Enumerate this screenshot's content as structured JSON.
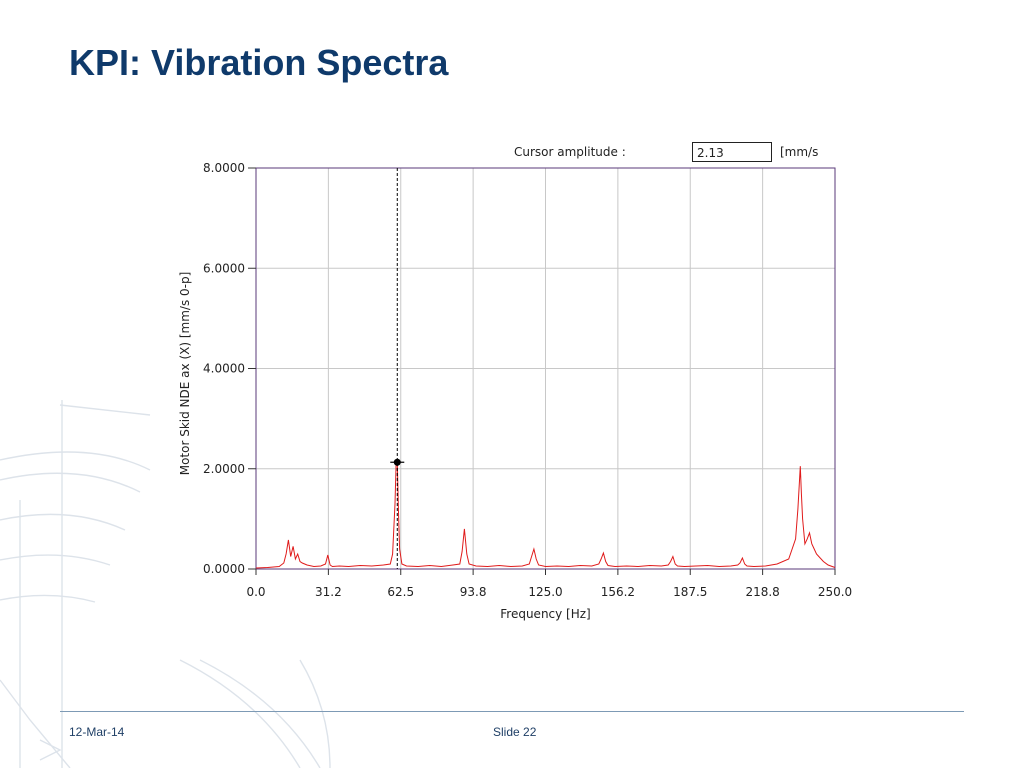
{
  "slide": {
    "title": "KPI: Vibration Spectra",
    "footer_date": "12-Mar-14",
    "footer_slide": "Slide 22"
  },
  "cursor": {
    "label": "Cursor amplitude :",
    "value": "2.13",
    "unit": "[mm/s",
    "frequency": 61.0,
    "amplitude": 2.13
  },
  "colors": {
    "title": "#0f3a6b",
    "trace": "#e01b1b",
    "grid": "#c8c8c8",
    "frame": "#5a3a7a"
  },
  "chart_data": {
    "type": "line",
    "xlabel": "Frequency [Hz]",
    "ylabel": "Motor Skid NDE ax (X) [mm/s 0-p]",
    "xlim": [
      0,
      250
    ],
    "ylim": [
      0,
      8
    ],
    "x_ticks": [
      "0.0",
      "31.2",
      "62.5",
      "93.8",
      "125.0",
      "156.2",
      "187.5",
      "218.8",
      "250.0"
    ],
    "y_ticks": [
      "0.0000",
      "2.0000",
      "4.0000",
      "6.0000",
      "8.0000"
    ],
    "grid": true,
    "series": [
      {
        "x": [
          0,
          5,
          10,
          12,
          13,
          14,
          15,
          16,
          17,
          18,
          19,
          20,
          22,
          25,
          28,
          30,
          31,
          32,
          33,
          36,
          40,
          45,
          50,
          55,
          58,
          59,
          60,
          60.5,
          61,
          61.5,
          62,
          63,
          65,
          70,
          75,
          80,
          85,
          88,
          89,
          90,
          91,
          92,
          95,
          100,
          105,
          110,
          115,
          118,
          119,
          120,
          121,
          122,
          125,
          130,
          135,
          140,
          145,
          148,
          149,
          150,
          151,
          152,
          155,
          160,
          165,
          170,
          175,
          178,
          179,
          180,
          181,
          182,
          185,
          190,
          195,
          200,
          205,
          208,
          209,
          210,
          211,
          212,
          215,
          220,
          225,
          230,
          233,
          234,
          235,
          235.5,
          236,
          237,
          238,
          239,
          240,
          241,
          242,
          243,
          245,
          247,
          250
        ],
        "y": [
          0.02,
          0.03,
          0.05,
          0.12,
          0.3,
          0.58,
          0.25,
          0.45,
          0.2,
          0.3,
          0.15,
          0.12,
          0.08,
          0.05,
          0.06,
          0.1,
          0.28,
          0.08,
          0.05,
          0.06,
          0.05,
          0.07,
          0.06,
          0.08,
          0.1,
          0.3,
          1.3,
          2.1,
          2.13,
          1.2,
          0.4,
          0.1,
          0.06,
          0.05,
          0.07,
          0.05,
          0.08,
          0.1,
          0.35,
          0.8,
          0.3,
          0.1,
          0.06,
          0.05,
          0.07,
          0.05,
          0.06,
          0.1,
          0.25,
          0.4,
          0.2,
          0.08,
          0.05,
          0.06,
          0.05,
          0.07,
          0.06,
          0.1,
          0.2,
          0.32,
          0.15,
          0.07,
          0.05,
          0.06,
          0.05,
          0.07,
          0.06,
          0.08,
          0.15,
          0.25,
          0.1,
          0.06,
          0.05,
          0.06,
          0.07,
          0.05,
          0.06,
          0.08,
          0.12,
          0.22,
          0.1,
          0.06,
          0.05,
          0.06,
          0.1,
          0.2,
          0.6,
          1.2,
          2.05,
          1.5,
          1.0,
          0.5,
          0.6,
          0.72,
          0.5,
          0.4,
          0.3,
          0.25,
          0.15,
          0.08,
          0.03
        ]
      }
    ]
  }
}
